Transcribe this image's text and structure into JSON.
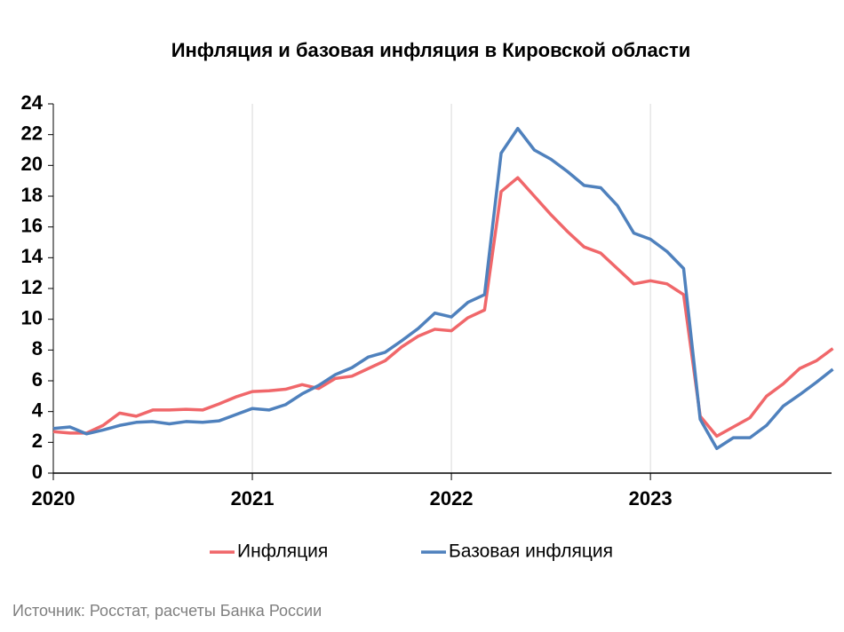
{
  "chart_data": {
    "type": "line",
    "title": "Инфляция и базовая инфляция в Кировской области",
    "source": "Источник: Росстат, расчеты Банка России",
    "categories": [
      "2020",
      null,
      null,
      null,
      null,
      null,
      null,
      null,
      null,
      null,
      null,
      null,
      "2021",
      null,
      null,
      null,
      null,
      null,
      null,
      null,
      null,
      null,
      null,
      null,
      "2022",
      null,
      null,
      null,
      null,
      null,
      null,
      null,
      null,
      null,
      null,
      null,
      "2023",
      null,
      null,
      null,
      null,
      null,
      null,
      null,
      null,
      null,
      null,
      null
    ],
    "series": [
      {
        "name": "Инфляция",
        "color": "#f0676a",
        "values": [
          2.7,
          2.6,
          2.6,
          3.1,
          3.9,
          3.7,
          4.1,
          4.1,
          4.15,
          4.1,
          4.5,
          4.95,
          5.3,
          5.35,
          5.45,
          5.75,
          5.5,
          6.15,
          6.3,
          6.8,
          7.3,
          8.2,
          8.9,
          9.35,
          9.25,
          10.1,
          10.6,
          18.3,
          19.2,
          18.0,
          16.8,
          15.7,
          14.7,
          14.3,
          13.3,
          12.3,
          12.5,
          12.3,
          11.6,
          3.7,
          2.4,
          3.0,
          3.6,
          5.0,
          5.8,
          6.8,
          7.3,
          8.1
        ]
      },
      {
        "name": "Базовая инфляция",
        "color": "#4f81bd",
        "values": [
          2.9,
          3.0,
          2.55,
          2.8,
          3.1,
          3.3,
          3.35,
          3.2,
          3.35,
          3.3,
          3.4,
          3.8,
          4.2,
          4.1,
          4.45,
          5.15,
          5.7,
          6.4,
          6.85,
          7.55,
          7.85,
          8.6,
          9.4,
          10.4,
          10.15,
          11.1,
          11.6,
          20.8,
          22.4,
          21.0,
          20.4,
          19.6,
          18.7,
          18.55,
          17.4,
          15.6,
          15.2,
          14.4,
          13.3,
          3.5,
          1.6,
          2.3,
          2.3,
          3.1,
          4.35,
          5.1,
          5.9,
          6.75
        ]
      }
    ],
    "ylim": [
      0,
      24
    ],
    "yticks": [
      0,
      2,
      4,
      6,
      8,
      10,
      12,
      14,
      16,
      18,
      20,
      22,
      24
    ],
    "xgrid": true,
    "legend": "bottom"
  }
}
